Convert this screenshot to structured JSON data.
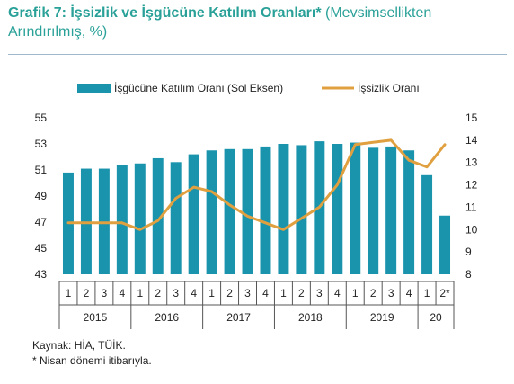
{
  "header": {
    "title_bold": "Grafik 7: İşsizlik ve İşgücüne Katılım Oranları*",
    "title_rest": " (Mevsimsellikten Arındırılmış, %)"
  },
  "footer": {
    "source": "Kaynak: HİA, TÜİK.",
    "note": "* Nisan dönemi itibarıyla."
  },
  "chart_data": {
    "type": "bar",
    "title": "Grafik 7: İşsizlik ve İşgücüne Katılım Oranları* (Mevsimsellikten Arındırılmış, %)",
    "categories": [
      "1",
      "2",
      "3",
      "4",
      "1",
      "2",
      "3",
      "4",
      "1",
      "2",
      "3",
      "4",
      "1",
      "2",
      "3",
      "4",
      "1",
      "2",
      "3",
      "4",
      "1",
      "2*"
    ],
    "year_groups": [
      {
        "label": "2015",
        "count": 4
      },
      {
        "label": "2016",
        "count": 4
      },
      {
        "label": "2017",
        "count": 4
      },
      {
        "label": "2018",
        "count": 4
      },
      {
        "label": "2019",
        "count": 4
      },
      {
        "label": "20",
        "count": 2
      }
    ],
    "series": [
      {
        "name": "İşgücüne Katılım Oranı (Sol Eksen)",
        "type": "bar",
        "axis": "left",
        "color": "#1a93ad",
        "values": [
          50.8,
          51.1,
          51.1,
          51.4,
          51.5,
          51.9,
          51.6,
          52.2,
          52.5,
          52.6,
          52.6,
          52.8,
          53.0,
          52.9,
          53.2,
          53.0,
          53.1,
          52.7,
          52.8,
          52.5,
          50.6,
          47.5
        ]
      },
      {
        "name": "İşsizlik Oranı",
        "type": "line",
        "axis": "right",
        "color": "#e0a040",
        "values": [
          10.3,
          10.3,
          10.3,
          10.3,
          10.0,
          10.4,
          11.4,
          11.9,
          11.7,
          11.1,
          10.6,
          10.3,
          10.0,
          10.5,
          11.0,
          12.0,
          13.8,
          13.9,
          14.0,
          13.1,
          12.8,
          13.8
        ]
      }
    ],
    "y_left": {
      "min": 43,
      "max": 55,
      "ticks": [
        43,
        45,
        47,
        49,
        51,
        53,
        55
      ]
    },
    "y_right": {
      "min": 8,
      "max": 15,
      "ticks": [
        8,
        9,
        10,
        11,
        12,
        13,
        14,
        15
      ]
    },
    "legend_position": "top",
    "grid": false
  }
}
